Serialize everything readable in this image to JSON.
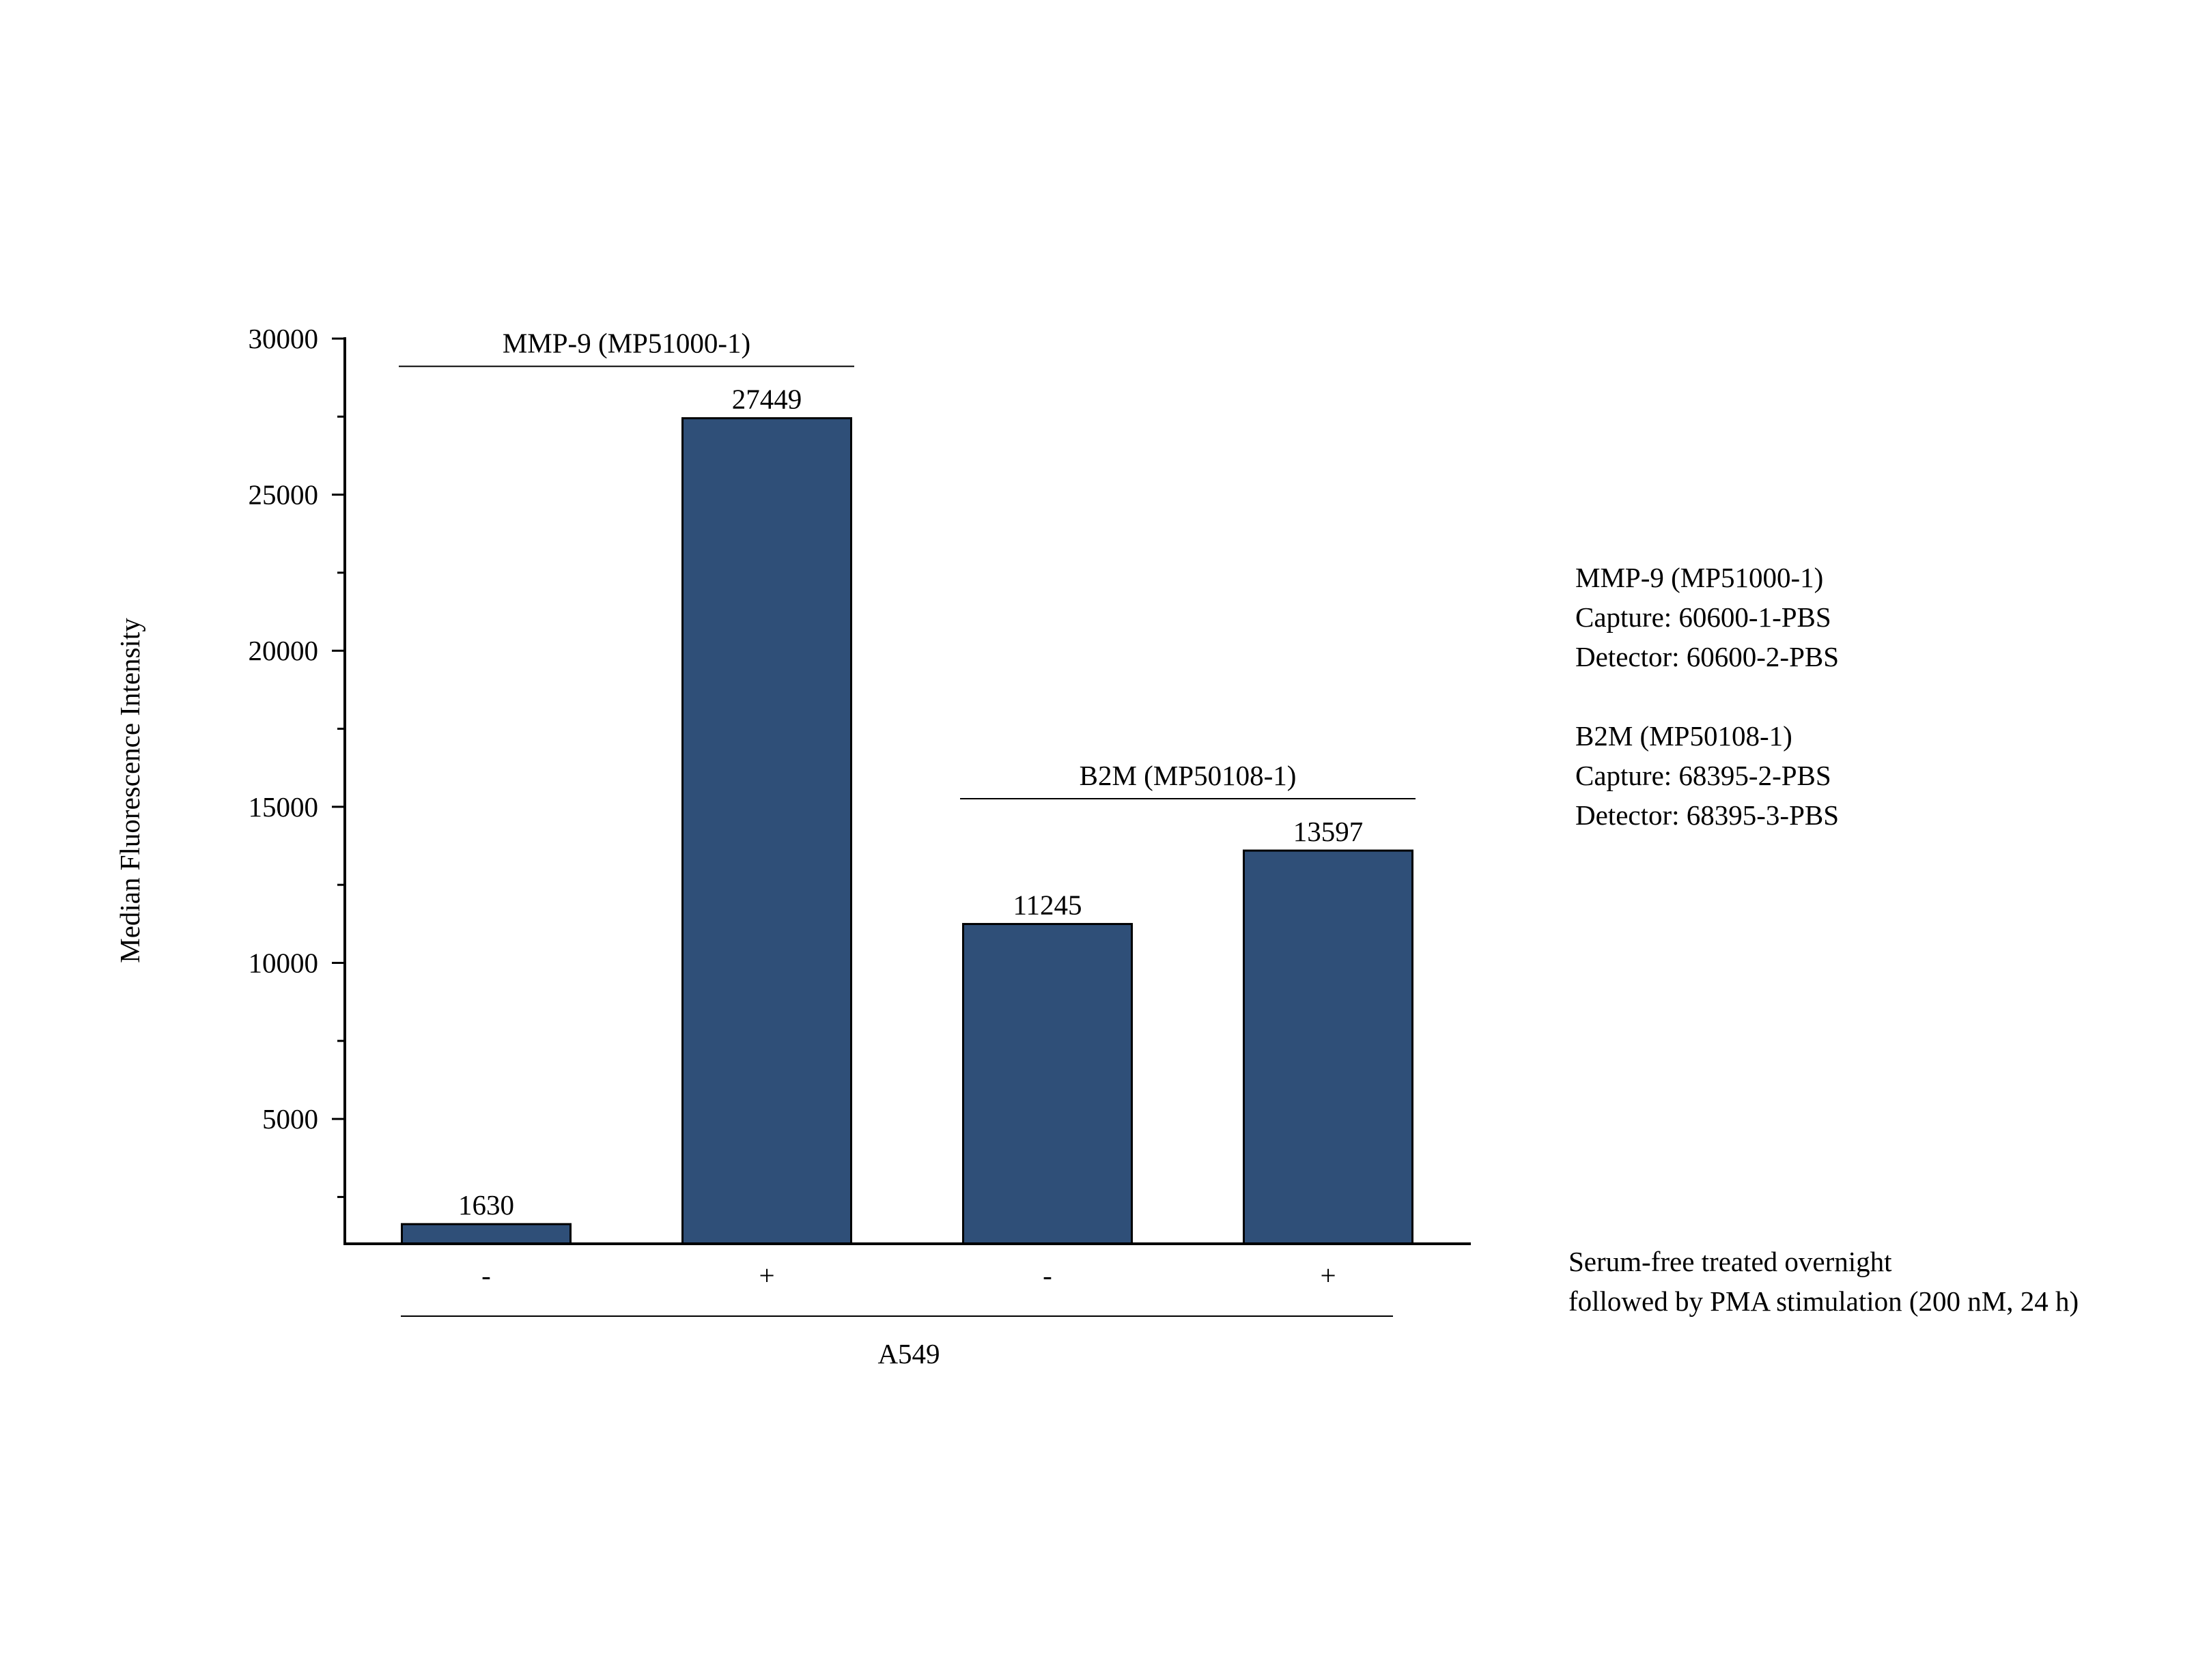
{
  "chart_data": {
    "type": "bar",
    "categories": [
      "-",
      "+",
      "-",
      "+"
    ],
    "values": [
      1630,
      27449,
      11245,
      13597
    ],
    "data_labels": [
      "1630",
      "27449",
      "11245",
      "13597"
    ],
    "title": "",
    "xlabel": "A549",
    "ylabel": "Median Fluorescence Intensity",
    "ylim": [
      1000,
      30000
    ],
    "y_ticks": [
      5000,
      10000,
      15000,
      20000,
      25000,
      30000
    ],
    "y_tick_labels": [
      "5000",
      "10000",
      "15000",
      "20000",
      "25000",
      "30000"
    ],
    "grid": false,
    "legend": "none",
    "bar_color": "#2f4f78",
    "groups": [
      {
        "label": "MMP-9 (MP51000-1)",
        "category_span": [
          0,
          1
        ]
      },
      {
        "label": "B2M (MP50108-1)",
        "category_span": [
          2,
          3
        ]
      }
    ],
    "annotations": {
      "kits": [
        "MMP-9 (MP51000-1)",
        "Capture: 60600-1-PBS",
        "Detector: 60600-2-PBS",
        "",
        "B2M (MP50108-1)",
        "Capture: 68395-2-PBS",
        "Detector: 68395-3-PBS"
      ],
      "treatment": [
        "Serum-free treated overnight",
        "followed by PMA stimulation (200 nM, 24 h)"
      ]
    }
  }
}
